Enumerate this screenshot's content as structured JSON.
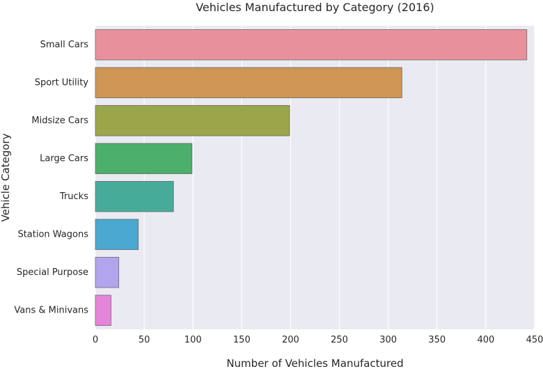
{
  "chart_data": {
    "type": "bar",
    "orientation": "horizontal",
    "title": "Vehicles Manufactured by Category (2016)",
    "xlabel": "Number of Vehicles Manufactured",
    "ylabel": "Vehicle Category",
    "categories": [
      "Small Cars",
      "Sport Utility",
      "Midsize Cars",
      "Large Cars",
      "Trucks",
      "Station Wagons",
      "Special Purpose",
      "Vans & Minivans"
    ],
    "values": [
      442,
      314,
      199,
      99,
      80,
      44,
      24,
      16
    ],
    "colors": [
      "#e8909c",
      "#cf9552",
      "#9ba549",
      "#4caf6a",
      "#47ab9a",
      "#4aa8d1",
      "#b3a4ee",
      "#e584d8"
    ],
    "xlim": [
      0,
      450
    ],
    "xticks": [
      0,
      50,
      100,
      150,
      200,
      250,
      300,
      350,
      400,
      450
    ],
    "grid": true,
    "background": "#eaeaf2"
  }
}
